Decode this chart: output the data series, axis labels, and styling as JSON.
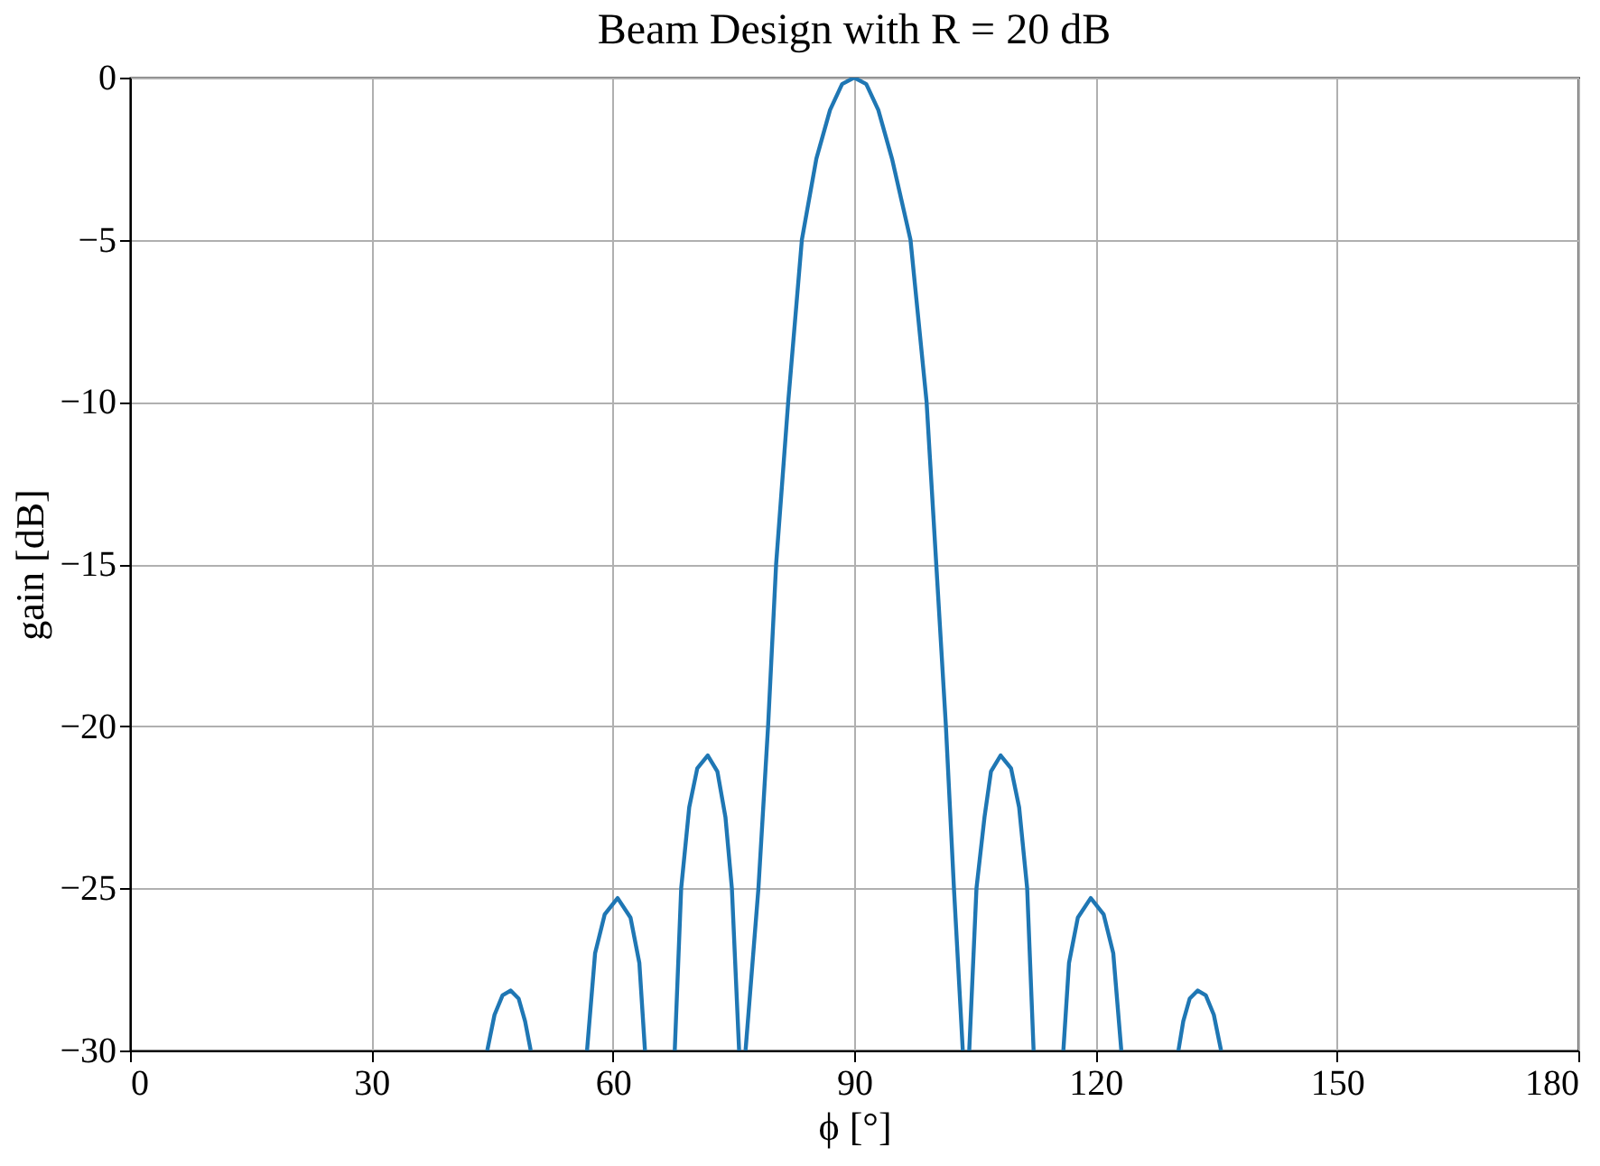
{
  "chart_data": {
    "type": "line",
    "title": "Beam Design with R = 20 dB",
    "xlabel": "ϕ [°]",
    "ylabel": "gain [dB]",
    "xlim": [
      0,
      180
    ],
    "xticks": [
      0,
      30,
      60,
      90,
      120,
      150,
      180
    ],
    "ylim": [
      -30,
      0
    ],
    "yticks": [
      -30,
      -25,
      -20,
      -15,
      -10,
      -5,
      0
    ],
    "grid": true,
    "line_style": "solid",
    "series": [
      {
        "color": "#1f77b4",
        "x": [
          44.4,
          45.3,
          46.3,
          47.3,
          48.3,
          49.1,
          49.8,
          null,
          56.8,
          57.8,
          59.0,
          60.6,
          62.2,
          63.3,
          64.0,
          null,
          67.7,
          68.5,
          69.5,
          70.5,
          71.8,
          73.0,
          74.0,
          74.8,
          75.7,
          null,
          76.5,
          78.1,
          79.3,
          80.3,
          81.8,
          83.5,
          85.3,
          87.0,
          88.5,
          90.0,
          91.5,
          93.0,
          94.7,
          97.0,
          99.0,
          100.2,
          101.4,
          102.4,
          103.5,
          null,
          104.3,
          105.2,
          106.2,
          107.0,
          108.2,
          109.5,
          110.5,
          111.5,
          112.3,
          null,
          116.0,
          116.7,
          117.8,
          119.4,
          121.0,
          122.2,
          123.2,
          null,
          130.3,
          130.9,
          131.7,
          132.7,
          133.7,
          134.7,
          135.6
        ],
        "values": [
          -30,
          -28.9,
          -28.3,
          -28.15,
          -28.4,
          -29.1,
          -30,
          null,
          -30,
          -27.0,
          -25.8,
          -25.3,
          -25.9,
          -27.3,
          -30,
          null,
          -30,
          -25,
          -22.5,
          -21.3,
          -20.9,
          -21.4,
          -22.8,
          -25,
          -30,
          null,
          -30,
          -25,
          -20,
          -15,
          -10,
          -5,
          -2.5,
          -1,
          -0.2,
          0,
          -0.2,
          -1,
          -2.5,
          -5,
          -10,
          -15,
          -20,
          -25,
          -30,
          null,
          -30,
          -25,
          -22.8,
          -21.4,
          -20.9,
          -21.3,
          -22.5,
          -25,
          -30,
          null,
          -30,
          -27.3,
          -25.9,
          -25.3,
          -25.8,
          -27.0,
          -30,
          null,
          -30,
          -29.1,
          -28.4,
          -28.15,
          -28.3,
          -28.9,
          -30
        ]
      }
    ]
  }
}
